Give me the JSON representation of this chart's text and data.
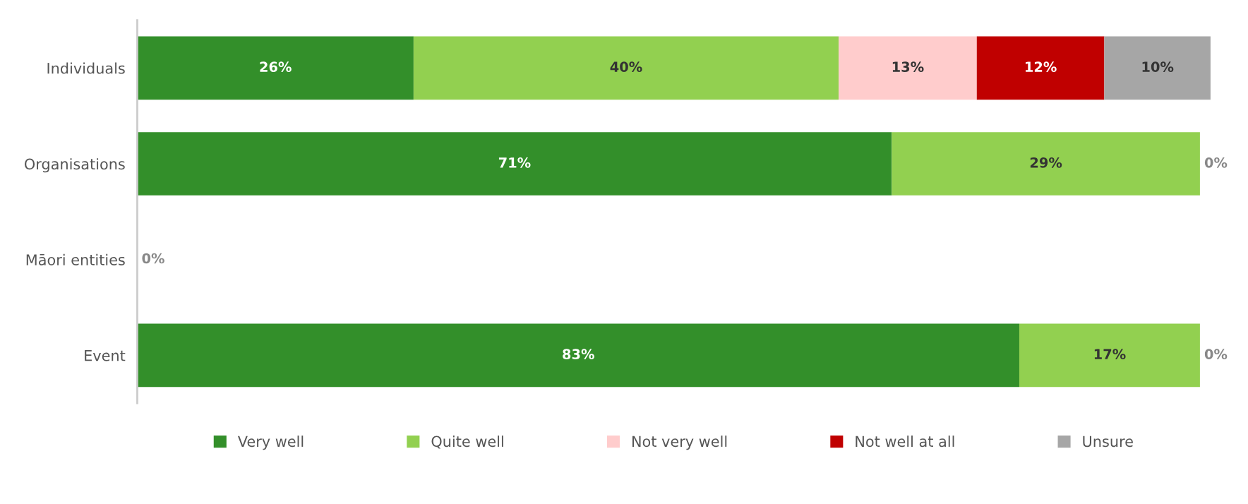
{
  "chart_data": {
    "type": "bar",
    "orientation": "horizontal",
    "stacked": true,
    "categories": [
      "Individuals",
      "Organisations",
      "Māori entities",
      "Event"
    ],
    "xlim": [
      0,
      101
    ],
    "tick_labels": "y",
    "grid": false,
    "legend": "bottom",
    "series": [
      {
        "name": "Very well",
        "color": "#338f2a",
        "values": [
          26,
          71,
          0,
          83
        ],
        "value_labels": [
          "26%",
          "71%",
          "0%",
          "83%"
        ]
      },
      {
        "name": "Quite well",
        "color": "#92d050",
        "values": [
          40,
          29,
          0,
          17
        ],
        "value_labels": [
          "40%",
          "29%",
          null,
          "17%"
        ]
      },
      {
        "name": "Not very well",
        "color": "#ffcccc",
        "values": [
          13,
          0,
          0,
          0
        ],
        "value_labels": [
          "13%",
          "0%",
          null,
          "0%"
        ]
      },
      {
        "name": "Not well at all",
        "color": "#c00000",
        "values": [
          12,
          0,
          0,
          0
        ],
        "value_labels": [
          "12%",
          null,
          null,
          null
        ]
      },
      {
        "name": "Unsure",
        "color": "#a6a6a6",
        "values": [
          10,
          0,
          0,
          0
        ],
        "value_labels": [
          "10%",
          null,
          null,
          null
        ]
      }
    ]
  }
}
